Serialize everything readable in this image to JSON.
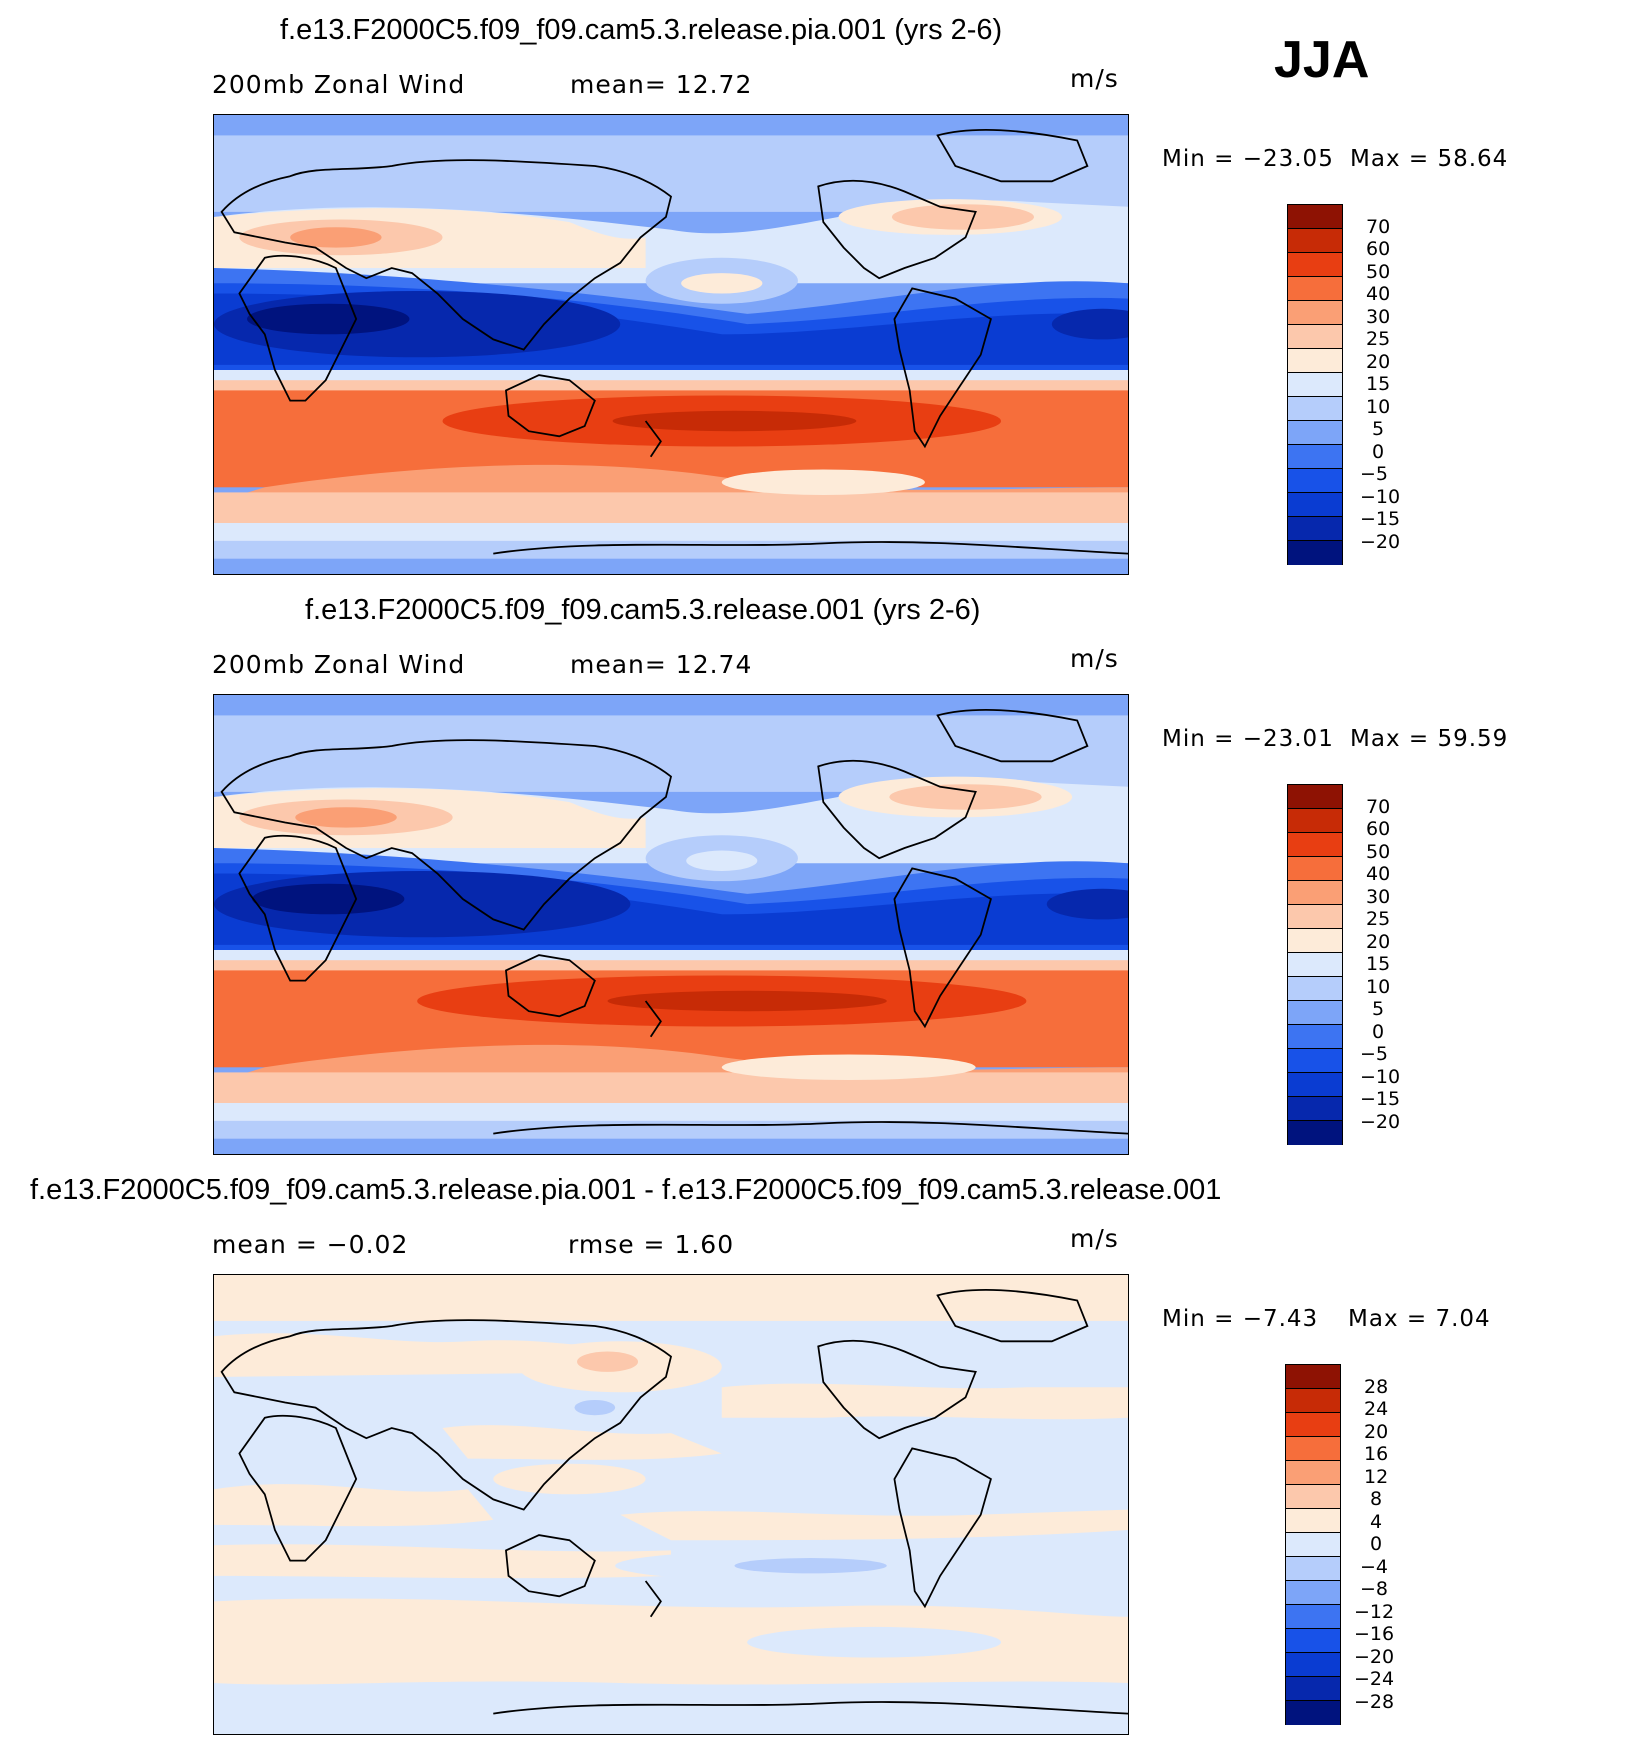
{
  "season": "JJA",
  "colors": {
    "wind": [
      "#00137e",
      "#0628ad",
      "#0a3cd2",
      "#1852e8",
      "#3d74f2",
      "#7da5f8",
      "#b5cdfb",
      "#dce9fc",
      "#fdebd9",
      "#fcc8ac",
      "#fa9f75",
      "#f66e3b",
      "#e83e12",
      "#c72b06",
      "#8e1203"
    ],
    "diff": [
      "#00137e",
      "#0628ad",
      "#0a3cd2",
      "#1852e8",
      "#3d74f2",
      "#7da5f8",
      "#b5cdfb",
      "#dce9fc",
      "#fdebd9",
      "#fcc8ac",
      "#fa9f75",
      "#f66e3b",
      "#e83e12",
      "#c72b06",
      "#8e1203"
    ]
  },
  "panels": [
    {
      "id": "pia",
      "title": "f.e13.F2000C5.f09_f09.cam5.3.release.pia.001 (yrs 2-6)",
      "left_label": "200mb  Zonal Wind",
      "mid_label": "mean=   12.72",
      "units": "m/s",
      "min_label": "Min  =  −23.05",
      "max_label": "Max  =    58.64",
      "ticks": [
        "70",
        "60",
        "50",
        "40",
        "30",
        "25",
        "20",
        "15",
        "10",
        "5",
        "0",
        "−5",
        "−10",
        "−15",
        "−20"
      ]
    },
    {
      "id": "control",
      "title": "f.e13.F2000C5.f09_f09.cam5.3.release.001 (yrs 2-6)",
      "left_label": "200mb  Zonal Wind",
      "mid_label": "mean=   12.74",
      "units": "m/s",
      "min_label": "Min  =  −23.01",
      "max_label": "Max  =    59.59",
      "ticks": [
        "70",
        "60",
        "50",
        "40",
        "30",
        "25",
        "20",
        "15",
        "10",
        "5",
        "0",
        "−5",
        "−10",
        "−15",
        "−20"
      ]
    },
    {
      "id": "difference",
      "title": "f.e13.F2000C5.f09_f09.cam5.3.release.pia.001 - f.e13.F2000C5.f09_f09.cam5.3.release.001",
      "left_label": "mean  =    −0.02",
      "mid_label": "rmse  =     1.60",
      "units": "m/s",
      "min_label": "Min  =    −7.43",
      "max_label": "Max  =      7.04",
      "ticks": [
        "28",
        "24",
        "20",
        "16",
        "12",
        "8",
        "4",
        "0",
        "−4",
        "−8",
        "−12",
        "−16",
        "−20",
        "−24",
        "−28"
      ]
    }
  ]
}
